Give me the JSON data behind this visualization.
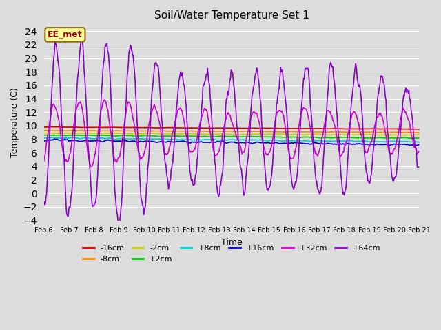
{
  "title": "Soil/Water Temperature Set 1",
  "xlabel": "Time",
  "ylabel": "Temperature (C)",
  "ylim": [
    -4,
    25
  ],
  "yticks": [
    -4,
    -2,
    0,
    2,
    4,
    6,
    8,
    10,
    12,
    14,
    16,
    18,
    20,
    22,
    24
  ],
  "bg_color": "#dcdcdc",
  "plot_bg": "#dcdcdc",
  "series_order": [
    "-16cm",
    "-8cm",
    "-2cm",
    "+2cm",
    "+8cm",
    "+16cm",
    "+32cm",
    "+64cm"
  ],
  "colors": {
    "-16cm": "#cc0000",
    "-8cm": "#ff8800",
    "-2cm": "#cccc00",
    "+2cm": "#00cc00",
    "+8cm": "#00cccc",
    "+16cm": "#0000cc",
    "+32cm": "#cc00cc",
    "+64cm": "#8800cc"
  },
  "lw": {
    "-16cm": 1.2,
    "-8cm": 1.2,
    "-2cm": 1.2,
    "+2cm": 1.2,
    "+8cm": 1.2,
    "+16cm": 1.2,
    "+32cm": 1.2,
    "+64cm": 1.2
  },
  "annotation_text": "EE_met",
  "annotation_color": "#8b0000",
  "annotation_bg": "#ffff99",
  "annotation_border": "#8b6914",
  "n_days": 15,
  "n_points_per_day": 48,
  "figsize": [
    6.4,
    4.8
  ],
  "dpi": 100
}
